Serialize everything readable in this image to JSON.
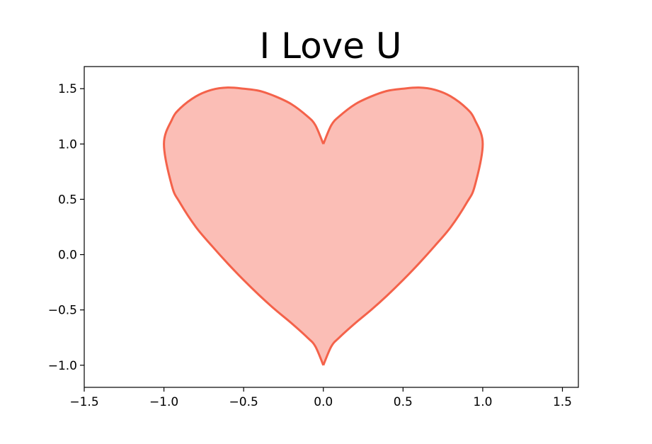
{
  "chart_data": {
    "type": "area",
    "title": "I Love U",
    "xlabel": "",
    "ylabel": "",
    "xlim": [
      -1.5,
      1.6
    ],
    "ylim": [
      -1.2,
      1.7
    ],
    "x_ticks": [
      -1.5,
      -1.0,
      -0.5,
      0.0,
      0.5,
      1.0,
      1.5
    ],
    "x_tick_labels": [
      "−1.5",
      "−1.0",
      "−0.5",
      "0.0",
      "0.5",
      "1.0",
      "1.5"
    ],
    "y_ticks": [
      -1.0,
      -0.5,
      0.0,
      0.5,
      1.0,
      1.5
    ],
    "y_tick_labels": [
      "−1.0",
      "−0.5",
      "0.0",
      "0.5",
      "1.0",
      "1.5"
    ],
    "grid": false,
    "series": [
      {
        "curve": "heart",
        "x": [
          0.0,
          0.05,
          0.1,
          0.2,
          0.3,
          0.4,
          0.5,
          0.6,
          0.7,
          0.8,
          0.9,
          0.95,
          1.0
        ],
        "upper": [
          1.0,
          1.17,
          1.25,
          1.36,
          1.43,
          1.48,
          1.5,
          1.51,
          1.49,
          1.43,
          1.32,
          1.22,
          1.0
        ],
        "lower": [
          -1.0,
          -0.83,
          -0.75,
          -0.62,
          -0.5,
          -0.37,
          -0.23,
          -0.08,
          0.08,
          0.25,
          0.47,
          0.62,
          1.0
        ],
        "mirrored": true,
        "line_color": "#f4624a",
        "fill_color": "#fbbeb6"
      }
    ]
  }
}
